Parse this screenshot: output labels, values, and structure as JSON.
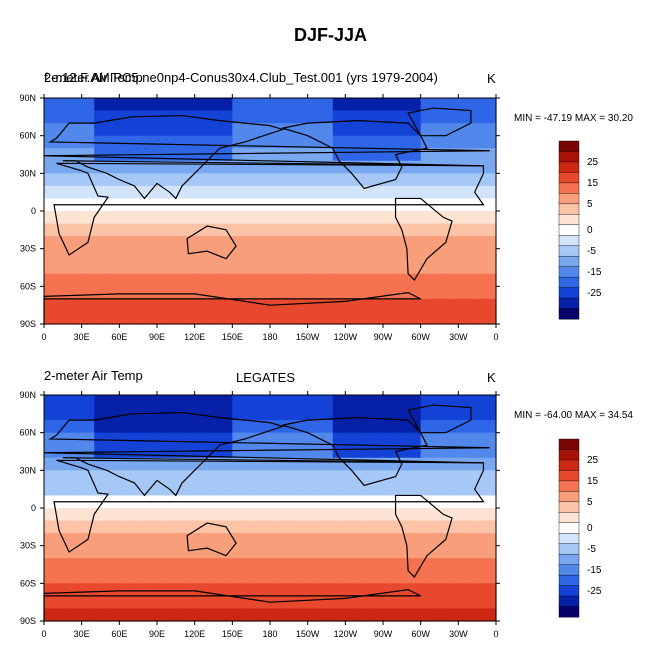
{
  "title": "DJF-JJA",
  "colors": {
    "scale": [
      "#08006a",
      "#0620a8",
      "#1442d6",
      "#2f66e8",
      "#5288ec",
      "#7aa8f0",
      "#a6c8f6",
      "#d2e4fb",
      "#ffffff",
      "#fde3d4",
      "#fcc3a6",
      "#f99e7a",
      "#f47250",
      "#e8482d",
      "#cc2712",
      "#a81008",
      "#7a0505"
    ],
    "land_outline": "#000000"
  },
  "panels": [
    {
      "left_title": "2-meter Air Temp",
      "center_title": "",
      "overlay_title": "f.e.12.F.AMIPC5.ne0np4-Conus30x4.Club_Test.001 (yrs 1979-2004)",
      "units": "K",
      "min_max": "MIN = -47.19 MAX =  30.20"
    },
    {
      "left_title": "2-meter Air Temp",
      "center_title": "LEGATES",
      "overlay_title": "",
      "units": "K",
      "min_max": "MIN = -64.00 MAX =  34.54"
    }
  ],
  "chart_data": [
    {
      "type": "heatmap",
      "title": "DJF-JJA",
      "field": "2-meter Air Temp",
      "units": "K",
      "min": -47.19,
      "max": 30.2,
      "xticks": [
        "0",
        "30E",
        "60E",
        "90E",
        "120E",
        "150E",
        "180",
        "150W",
        "120W",
        "90W",
        "60W",
        "30W",
        "0"
      ],
      "yticks": [
        "90N",
        "60N",
        "30N",
        "0",
        "30S",
        "60S",
        "90S"
      ],
      "xlim": [
        0,
        360
      ],
      "ylim": [
        -90,
        90
      ],
      "colorbar_labels": [
        "25",
        "15",
        "5",
        "0",
        "-5",
        "-15",
        "-25"
      ]
    },
    {
      "type": "heatmap",
      "title": "DJF-JJA",
      "field": "2-meter Air Temp",
      "source": "LEGATES",
      "units": "K",
      "min": -64.0,
      "max": 34.54,
      "xticks": [
        "0",
        "30E",
        "60E",
        "90E",
        "120E",
        "150E",
        "180",
        "150W",
        "120W",
        "90W",
        "60W",
        "30W",
        "0"
      ],
      "yticks": [
        "90N",
        "60N",
        "30N",
        "0",
        "30S",
        "60S",
        "90S"
      ],
      "xlim": [
        0,
        360
      ],
      "ylim": [
        -90,
        90
      ],
      "colorbar_labels": [
        "25",
        "15",
        "5",
        "0",
        "-5",
        "-15",
        "-25"
      ]
    }
  ]
}
